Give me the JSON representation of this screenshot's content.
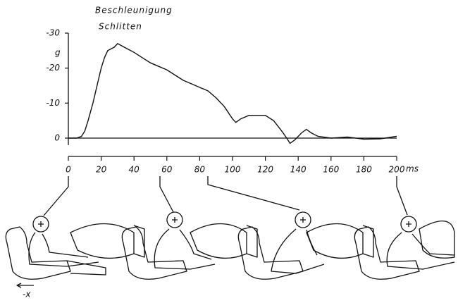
{
  "chart_data": {
    "type": "line",
    "title": "Beschleunigung",
    "subtitle": "Schlitten",
    "y_label": "g",
    "x_label": "ms",
    "annotation": "-x",
    "color": "#111111",
    "x": [
      0,
      5,
      8,
      10,
      12,
      15,
      18,
      20,
      22,
      24,
      26,
      28,
      30,
      32,
      34,
      36,
      40,
      45,
      50,
      55,
      60,
      65,
      70,
      75,
      80,
      85,
      90,
      95,
      100,
      102,
      105,
      110,
      115,
      120,
      125,
      130,
      133,
      135,
      138,
      142,
      145,
      148,
      152,
      160,
      170,
      180,
      190,
      200
    ],
    "values": [
      0,
      0,
      -0.5,
      -2,
      -5,
      -10,
      -16,
      -20,
      -23,
      -25,
      -25.5,
      -26,
      -27,
      -26.5,
      -26,
      -25.5,
      -24.5,
      -23,
      -21.5,
      -20.5,
      -19.5,
      -18,
      -16.5,
      -15.5,
      -14.5,
      -13.5,
      -11.5,
      -9,
      -5.5,
      -4.5,
      -5.5,
      -6.5,
      -6.5,
      -6.5,
      -5,
      -2,
      0,
      1.5,
      0.5,
      -1.5,
      -2.5,
      -1.5,
      -0.5,
      0,
      -0.3,
      0.3,
      0.2,
      -0.5
    ],
    "xlim": [
      0,
      200
    ],
    "xticks": [
      0,
      20,
      40,
      60,
      80,
      100,
      120,
      140,
      160,
      180,
      200
    ],
    "ylim": [
      2,
      -30
    ],
    "yticks": [
      -30,
      -20,
      -10,
      0
    ]
  }
}
